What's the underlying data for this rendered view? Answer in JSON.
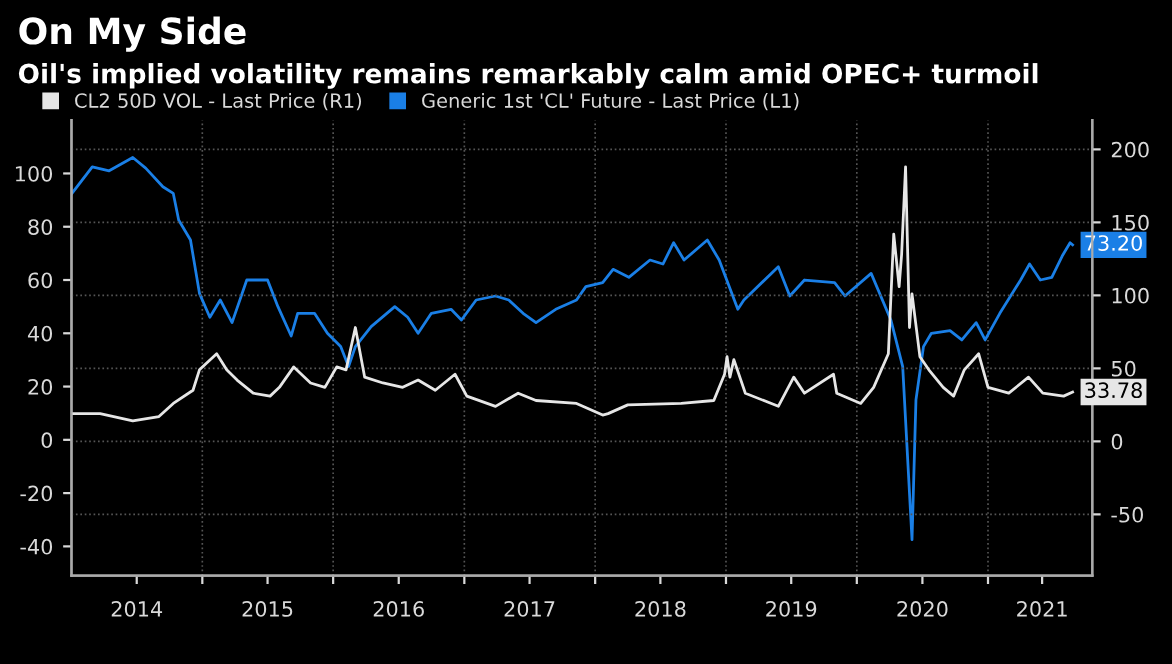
{
  "chart_data": {
    "type": "line",
    "title": "On My Side",
    "subtitle": "Oil's implied volatility remains remarkably calm amid OPEC+ turmoil",
    "legend": "top left",
    "grid": true,
    "xlim": [
      "2014-01-01",
      "2021-10-19"
    ],
    "xticks": [
      {
        "value": "2014-07-02",
        "label": "2014"
      },
      {
        "value": "2015-01-01",
        "label": null
      },
      {
        "value": "2015-07-02",
        "label": "2015"
      },
      {
        "value": "2016-01-01",
        "label": null
      },
      {
        "value": "2016-07-02",
        "label": "2016"
      },
      {
        "value": "2017-01-01",
        "label": null
      },
      {
        "value": "2017-07-02",
        "label": "2017"
      },
      {
        "value": "2018-01-01",
        "label": null
      },
      {
        "value": "2018-07-02",
        "label": "2018"
      },
      {
        "value": "2019-01-01",
        "label": null
      },
      {
        "value": "2019-07-02",
        "label": "2019"
      },
      {
        "value": "2020-01-01",
        "label": null
      },
      {
        "value": "2020-07-02",
        "label": "2020"
      },
      {
        "value": "2021-01-01",
        "label": null
      },
      {
        "value": "2021-06-01",
        "label": "2021"
      }
    ],
    "ylim": [
      -51,
      120
    ],
    "yticks": [
      -40,
      -20,
      0,
      20,
      40,
      60,
      80,
      100
    ],
    "y2lim": [
      -92,
      220
    ],
    "y2ticks": [
      -50,
      0,
      50,
      100,
      150,
      200
    ],
    "series": [
      {
        "name": "CL2 50D VOL - Last Price (R1)",
        "color": "#e6e6e6",
        "axis": "y2",
        "x": [
          "2014-01-02",
          "2014-03-22",
          "2014-06-21",
          "2014-09-02",
          "2014-10-12",
          "2014-12-06",
          "2014-12-24",
          "2015-02-10",
          "2015-03-10",
          "2015-04-08",
          "2015-05-23",
          "2015-07-09",
          "2015-08-04",
          "2015-09-13",
          "2015-10-30",
          "2015-12-09",
          "2016-01-11",
          "2016-02-06",
          "2016-03-03",
          "2016-03-29",
          "2016-05-19",
          "2016-07-13",
          "2016-08-25",
          "2016-10-12",
          "2016-12-06",
          "2017-01-08",
          "2017-03-29",
          "2017-05-31",
          "2017-07-20",
          "2017-11-10",
          "2018-01-22",
          "2018-02-06",
          "2018-04-02",
          "2018-08-29",
          "2018-11-28",
          "2018-12-28",
          "2019-01-04",
          "2019-01-12",
          "2019-01-23",
          "2019-02-24",
          "2019-05-27",
          "2019-07-09",
          "2019-08-08",
          "2019-10-28",
          "2019-11-06",
          "2020-01-12",
          "2020-02-17",
          "2020-03-29",
          "2020-04-13",
          "2020-04-28",
          "2020-05-05",
          "2020-05-16",
          "2020-05-27",
          "2020-06-03",
          "2020-06-25",
          "2020-07-20",
          "2020-08-29",
          "2020-09-27",
          "2020-10-27",
          "2020-12-06",
          "2021-01-01",
          "2021-02-28",
          "2021-04-24",
          "2021-06-03",
          "2021-07-31",
          "2021-08-25"
        ],
        "values": [
          19,
          19,
          14,
          17,
          26,
          35,
          49,
          60,
          49,
          42,
          33,
          31,
          37,
          51,
          40,
          37,
          51,
          49,
          78,
          44,
          40,
          37,
          42,
          35,
          46,
          31,
          24,
          33,
          28,
          26,
          18,
          19,
          25,
          26,
          28,
          46,
          58,
          44,
          56,
          33,
          24,
          44,
          33,
          46,
          33,
          26,
          37,
          60,
          142,
          106,
          128,
          188,
          78,
          101,
          58,
          49,
          37,
          31,
          49,
          60,
          37,
          33,
          44,
          33,
          31,
          33.78
        ],
        "value_labels": [
          null,
          null,
          null,
          null,
          null,
          null,
          null,
          null,
          null,
          null,
          null,
          null,
          null,
          null,
          null,
          null,
          null,
          null,
          null,
          null,
          null,
          null,
          null,
          null,
          null,
          null,
          null,
          null,
          null,
          null,
          null,
          null,
          null,
          null,
          null,
          null,
          null,
          null,
          null,
          null,
          null,
          null,
          null,
          null,
          null,
          null,
          null,
          null,
          null,
          null,
          null,
          null,
          null,
          null,
          null,
          null,
          null,
          null,
          null,
          null,
          null,
          null,
          null,
          null,
          null,
          "33.78"
        ]
      },
      {
        "name": "Generic 1st 'CL' Future - Last Price (L1)",
        "color": "#1a7fe6",
        "x": [
          "2014-01-02",
          "2014-02-28",
          "2014-04-16",
          "2014-06-21",
          "2014-07-27",
          "2014-09-13",
          "2014-10-12",
          "2014-10-27",
          "2014-11-29",
          "2014-12-24",
          "2015-01-22",
          "2015-02-20",
          "2015-03-25",
          "2015-05-05",
          "2015-07-02",
          "2015-07-31",
          "2015-09-06",
          "2015-09-24",
          "2015-11-10",
          "2015-12-16",
          "2016-01-22",
          "2016-02-13",
          "2016-03-03",
          "2016-04-16",
          "2016-06-21",
          "2016-07-27",
          "2016-08-25",
          "2016-10-01",
          "2016-11-25",
          "2016-12-24",
          "2017-02-03",
          "2017-03-29",
          "2017-05-05",
          "2017-06-14",
          "2017-07-20",
          "2017-09-13",
          "2017-11-10",
          "2017-12-06",
          "2018-01-22",
          "2018-02-20",
          "2018-04-05",
          "2018-06-03",
          "2018-07-09",
          "2018-08-08",
          "2018-09-06",
          "2018-11-10",
          "2018-12-13",
          "2019-02-03",
          "2019-02-20",
          "2019-05-27",
          "2019-06-28",
          "2019-08-08",
          "2019-10-31",
          "2019-11-29",
          "2020-02-10",
          "2020-04-05",
          "2020-05-08",
          "2020-06-03",
          "2020-06-14",
          "2020-07-05",
          "2020-07-27",
          "2020-09-17",
          "2020-10-20",
          "2020-11-29",
          "2020-12-24",
          "2021-02-03",
          "2021-04-02",
          "2021-04-27",
          "2021-05-27",
          "2021-06-28",
          "2021-07-27",
          "2021-08-18",
          "2021-08-25"
        ],
        "values": [
          92.5,
          102.5,
          101,
          106,
          102,
          95,
          92.5,
          82.5,
          75,
          55,
          46,
          52.5,
          44,
          60,
          60,
          50,
          39,
          47.5,
          47.5,
          40,
          35,
          27.5,
          35,
          42.5,
          50,
          46,
          40,
          47.5,
          49,
          45,
          52.5,
          54,
          52.5,
          47.5,
          44,
          49,
          52.5,
          57.5,
          59,
          64,
          61,
          67.5,
          66,
          74,
          67.5,
          75,
          67.5,
          49,
          52.5,
          65,
          54,
          60,
          59,
          54,
          62.5,
          45,
          27.5,
          -37.5,
          15,
          35,
          40,
          41,
          37.5,
          44,
          37.5,
          47.5,
          60,
          66,
          60,
          61,
          69,
          74,
          73.2
        ],
        "value_labels": [
          null,
          null,
          null,
          null,
          null,
          null,
          null,
          null,
          null,
          null,
          null,
          null,
          null,
          null,
          null,
          null,
          null,
          null,
          null,
          null,
          null,
          null,
          null,
          null,
          null,
          null,
          null,
          null,
          null,
          null,
          null,
          null,
          null,
          null,
          null,
          null,
          null,
          null,
          null,
          null,
          null,
          null,
          null,
          null,
          null,
          null,
          null,
          null,
          null,
          null,
          null,
          null,
          null,
          null,
          null,
          null,
          null,
          null,
          null,
          null,
          null,
          null,
          null,
          null,
          null,
          null,
          null,
          null,
          null,
          null,
          null,
          null,
          "73.20"
        ]
      }
    ]
  }
}
